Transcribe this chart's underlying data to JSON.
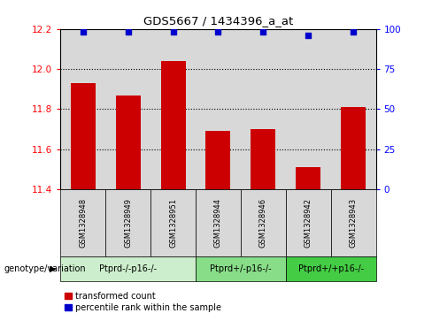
{
  "title": "GDS5667 / 1434396_a_at",
  "samples": [
    "GSM1328948",
    "GSM1328949",
    "GSM1328951",
    "GSM1328944",
    "GSM1328946",
    "GSM1328942",
    "GSM1328943"
  ],
  "red_values": [
    11.93,
    11.87,
    12.04,
    11.69,
    11.7,
    11.51,
    11.81
  ],
  "blue_values": [
    98,
    98,
    98,
    98,
    98,
    96,
    98
  ],
  "ylim_left": [
    11.4,
    12.2
  ],
  "ylim_right": [
    0,
    100
  ],
  "yticks_left": [
    11.4,
    11.6,
    11.8,
    12.0,
    12.2
  ],
  "yticks_right": [
    0,
    25,
    50,
    75,
    100
  ],
  "grid_values": [
    11.6,
    11.8,
    12.0
  ],
  "groups": [
    {
      "label": "Ptprd-/-p16-/-",
      "indices": [
        0,
        1,
        2
      ],
      "color": "#cceecc"
    },
    {
      "label": "Ptprd+/-p16-/-",
      "indices": [
        3,
        4
      ],
      "color": "#88dd88"
    },
    {
      "label": "Ptprd+/+p16-/-",
      "indices": [
        5,
        6
      ],
      "color": "#44cc44"
    }
  ],
  "bar_color": "#cc0000",
  "dot_color": "#0000cc",
  "bar_width": 0.55,
  "bar_base": 11.4,
  "legend_label_red": "transformed count",
  "legend_label_blue": "percentile rank within the sample",
  "genotype_label": "genotype/variation",
  "background_color": "#ffffff",
  "plot_bg_color": "#d8d8d8"
}
